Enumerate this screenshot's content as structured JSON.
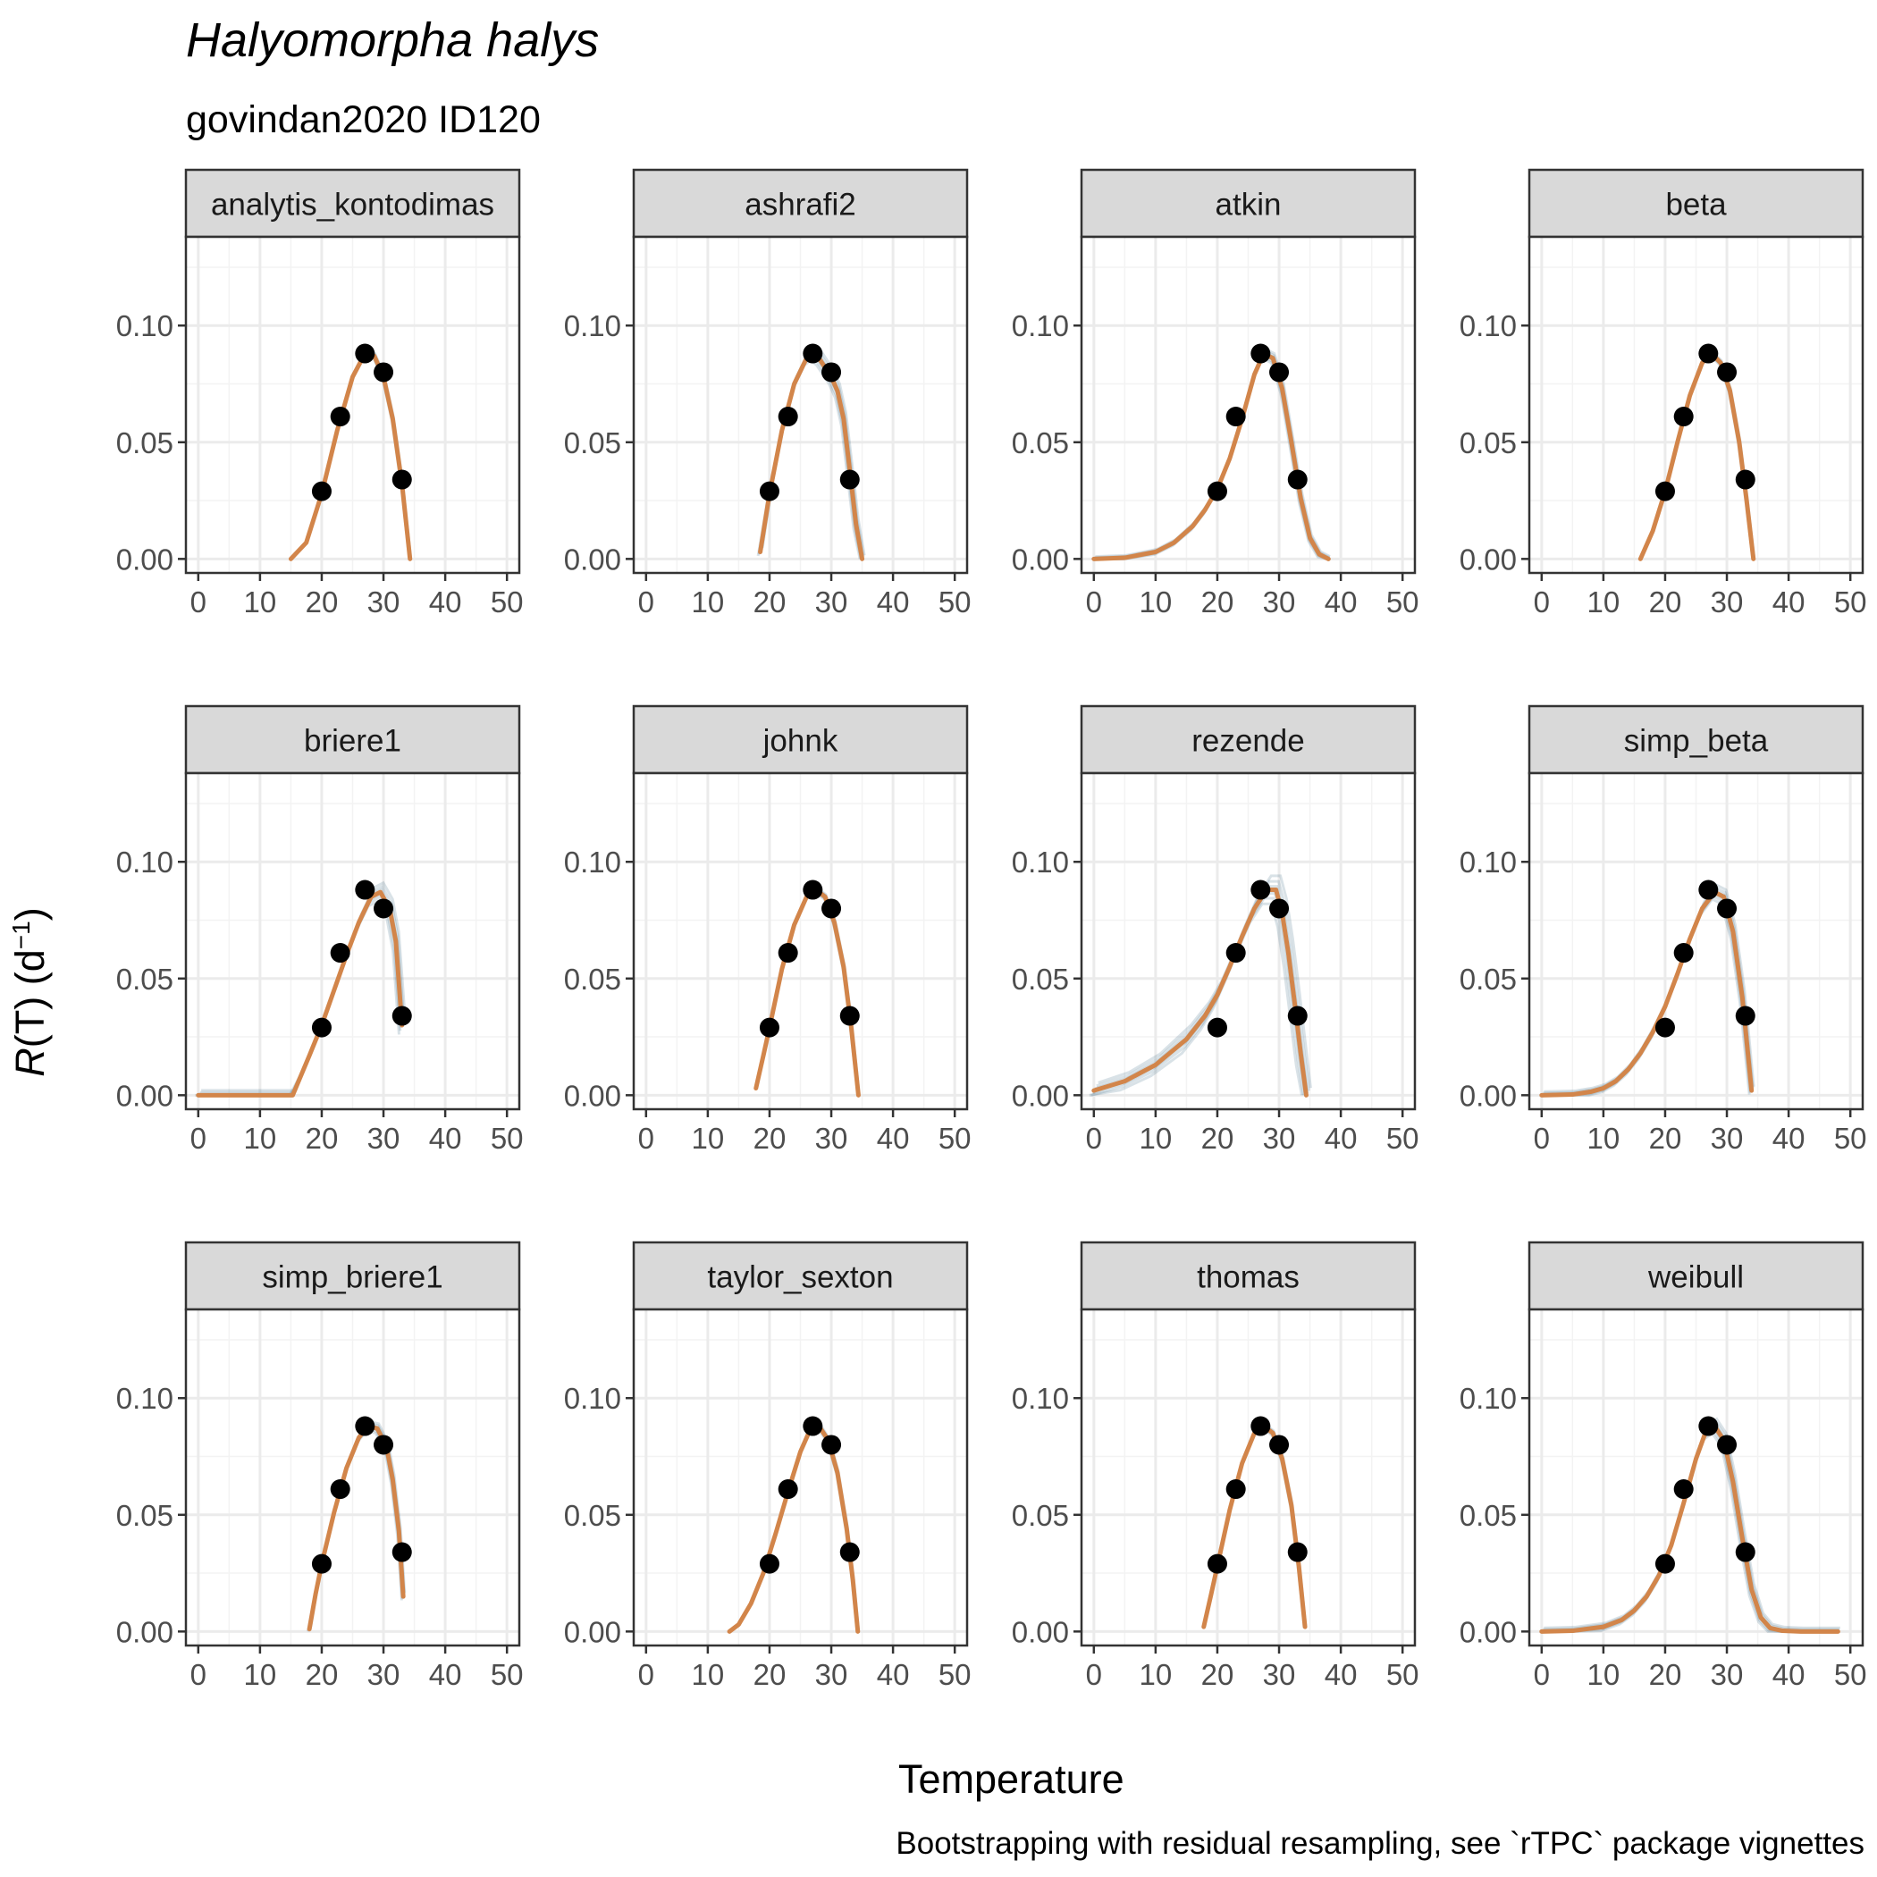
{
  "title": "Halyomorpha halys",
  "subtitle": "govindan2020 ID120",
  "xlabel": "Temperature",
  "ylabel_main": "R",
  "ylabel_rest": "(T) (d",
  "ylabel_sup": "−1",
  "ylabel_close": ")",
  "caption": "Bootstrapping with residual resampling, see `rTPC` package vignettes",
  "colors": {
    "fit": "#D2854A",
    "bootstrap": "#2F5F7A",
    "points": "#000000",
    "strip_bg": "#D9D9D9",
    "grid": "#EBEBEB"
  },
  "chart_data": {
    "type": "line",
    "facet_layout": "4 columns x 3 rows",
    "xlim": [
      -2,
      52
    ],
    "ylim": [
      -0.006,
      0.138
    ],
    "x_ticks": [
      0,
      10,
      20,
      30,
      40,
      50
    ],
    "x_tick_labels": [
      "0",
      "10",
      "20",
      "30",
      "40",
      "50"
    ],
    "y_ticks": [
      0,
      0.05,
      0.1
    ],
    "y_tick_labels": [
      "0.00",
      "0.05",
      "0.10"
    ],
    "grid": true,
    "observed_points": {
      "x": [
        20,
        23,
        27,
        30,
        33
      ],
      "y": [
        0.029,
        0.061,
        0.088,
        0.08,
        0.034
      ]
    },
    "facets": [
      {
        "label": "analytis_kontodimas",
        "fit": {
          "x": [
            15,
            17.5,
            20,
            22.5,
            25,
            27,
            28.5,
            30,
            31.5,
            33,
            34.3
          ],
          "y": [
            0.0,
            0.007,
            0.028,
            0.055,
            0.078,
            0.088,
            0.087,
            0.078,
            0.06,
            0.032,
            0.0
          ]
        },
        "boot_spread": 0.001
      },
      {
        "label": "ashrafi2",
        "fit": {
          "x": [
            18.5,
            20,
            22,
            24,
            26,
            27,
            28,
            29,
            30,
            31,
            32,
            33,
            34,
            35
          ],
          "y": [
            0.003,
            0.028,
            0.055,
            0.075,
            0.086,
            0.088,
            0.086,
            0.082,
            0.078,
            0.072,
            0.06,
            0.038,
            0.015,
            0.0
          ]
        },
        "boot_spread": 0.003
      },
      {
        "label": "atkin",
        "fit": {
          "x": [
            0,
            5,
            10,
            13,
            16,
            18,
            20,
            22,
            24,
            26,
            27.5,
            29,
            30.5,
            32,
            33.5,
            35,
            36.5,
            38
          ],
          "y": [
            0.0,
            0.0005,
            0.003,
            0.007,
            0.014,
            0.021,
            0.03,
            0.043,
            0.06,
            0.079,
            0.088,
            0.086,
            0.073,
            0.05,
            0.026,
            0.009,
            0.002,
            0.0
          ]
        },
        "boot_spread": 0.002
      },
      {
        "label": "beta",
        "fit": {
          "x": [
            16,
            18,
            20,
            22,
            24,
            26,
            27.5,
            29,
            30.5,
            32,
            33.2,
            34.3
          ],
          "y": [
            0.0,
            0.012,
            0.029,
            0.05,
            0.07,
            0.084,
            0.088,
            0.084,
            0.072,
            0.05,
            0.025,
            0.0
          ]
        },
        "boot_spread": 0.001
      },
      {
        "label": "briere1",
        "fit": {
          "x": [
            0,
            10,
            15.3,
            18,
            20,
            22,
            24,
            26,
            28,
            29.5,
            31,
            32,
            33
          ],
          "y": [
            0.0,
            0.0,
            0.0,
            0.017,
            0.03,
            0.045,
            0.06,
            0.074,
            0.085,
            0.087,
            0.08,
            0.066,
            0.03
          ]
        },
        "boot_spread": 0.004
      },
      {
        "label": "johnk",
        "fit": {
          "x": [
            17.8,
            19,
            20,
            22,
            24,
            26,
            27.5,
            29,
            30.5,
            32,
            33.2,
            34.4
          ],
          "y": [
            0.003,
            0.017,
            0.029,
            0.054,
            0.073,
            0.085,
            0.088,
            0.085,
            0.074,
            0.055,
            0.03,
            0.0
          ]
        },
        "boot_spread": 0.001
      },
      {
        "label": "rezende",
        "fit": {
          "x": [
            0,
            5,
            10,
            15,
            18,
            20,
            22,
            24,
            26,
            28,
            29.5,
            30.5,
            31.5,
            32.5,
            33.5,
            34.4
          ],
          "y": [
            0.002,
            0.006,
            0.013,
            0.024,
            0.034,
            0.043,
            0.055,
            0.068,
            0.08,
            0.088,
            0.088,
            0.078,
            0.061,
            0.04,
            0.018,
            0.0
          ]
        },
        "boot_spread": 0.006
      },
      {
        "label": "simp_beta",
        "fit": {
          "x": [
            0,
            5,
            8,
            10,
            12,
            14,
            16,
            18,
            20,
            22,
            24,
            26,
            28,
            29.5,
            31,
            32.5,
            34
          ],
          "y": [
            0.0,
            0.0003,
            0.0015,
            0.003,
            0.006,
            0.011,
            0.018,
            0.027,
            0.038,
            0.052,
            0.067,
            0.08,
            0.087,
            0.085,
            0.07,
            0.042,
            0.002
          ]
        },
        "boot_spread": 0.003
      },
      {
        "label": "simp_briere1",
        "fit": {
          "x": [
            18,
            19,
            20,
            22,
            24,
            26,
            27.5,
            29,
            30.5,
            31.5,
            32.5,
            33.2
          ],
          "y": [
            0.001,
            0.016,
            0.029,
            0.051,
            0.07,
            0.083,
            0.088,
            0.087,
            0.079,
            0.065,
            0.043,
            0.015
          ]
        },
        "boot_spread": 0.002
      },
      {
        "label": "taylor_sexton",
        "fit": {
          "x": [
            13.5,
            15,
            17,
            19,
            21,
            23,
            25,
            26.5,
            28,
            29.5,
            31,
            32.5,
            33.5,
            34.3
          ],
          "y": [
            0.0,
            0.003,
            0.012,
            0.025,
            0.042,
            0.06,
            0.077,
            0.086,
            0.088,
            0.082,
            0.068,
            0.044,
            0.022,
            0.0
          ]
        },
        "boot_spread": 0.001
      },
      {
        "label": "thomas",
        "fit": {
          "x": [
            17.8,
            19,
            20,
            22,
            24,
            26,
            27.5,
            29,
            30.5,
            32,
            33.2,
            34.2
          ],
          "y": [
            0.002,
            0.016,
            0.028,
            0.052,
            0.072,
            0.085,
            0.088,
            0.085,
            0.074,
            0.054,
            0.028,
            0.002
          ]
        },
        "boot_spread": 0.001
      },
      {
        "label": "weibull",
        "fit": {
          "x": [
            0,
            5,
            10,
            13,
            15,
            17,
            19,
            21,
            23,
            25,
            26.5,
            28,
            29.5,
            31,
            32.5,
            34,
            35.5,
            37,
            39,
            42,
            48
          ],
          "y": [
            0.0,
            0.0003,
            0.002,
            0.005,
            0.009,
            0.015,
            0.024,
            0.037,
            0.055,
            0.074,
            0.085,
            0.088,
            0.082,
            0.064,
            0.04,
            0.018,
            0.006,
            0.0015,
            0.0003,
            0.0,
            0.0
          ]
        },
        "boot_spread": 0.003
      }
    ]
  }
}
